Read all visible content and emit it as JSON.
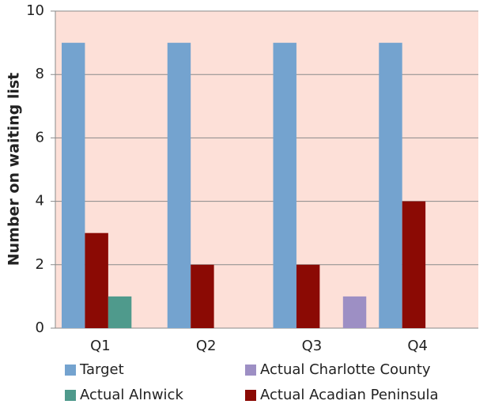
{
  "chart_data": {
    "type": "bar",
    "y_label": "Number on waiting list",
    "categories": [
      "Q1",
      "Q2",
      "Q3",
      "Q4"
    ],
    "series": [
      {
        "name": "Target",
        "color": "#74a3cf",
        "values": [
          9,
          9,
          9,
          9
        ]
      },
      {
        "name": "Actual Acadian Peninsula",
        "color": "#8b0a04",
        "values": [
          3,
          2,
          2,
          4
        ]
      },
      {
        "name": "Actual Alnwick",
        "color": "#4f9a8c",
        "values": [
          1,
          0,
          0,
          0
        ]
      },
      {
        "name": "Actual Charlotte County",
        "color": "#9d8fc4",
        "values": [
          0,
          0,
          1,
          0
        ]
      }
    ],
    "ylim": [
      0,
      10
    ],
    "yticks": [
      0,
      2,
      4,
      6,
      8,
      10
    ],
    "grid": true
  }
}
